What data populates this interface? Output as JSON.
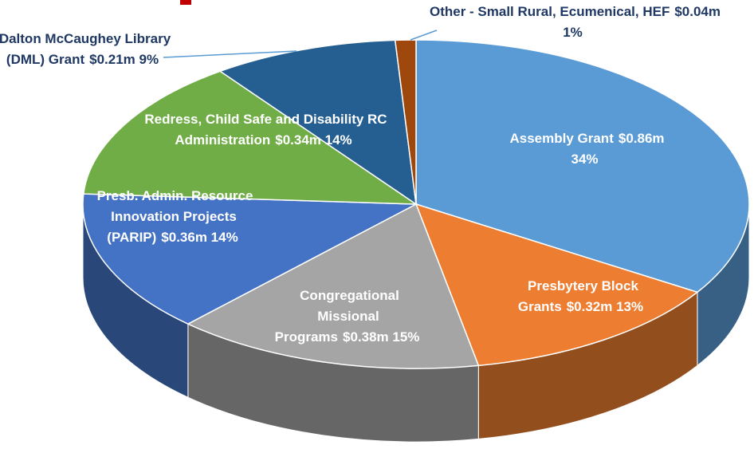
{
  "chart_data": {
    "type": "pie",
    "categories": [
      "Assembly Grant",
      "Presbytery Block Grants",
      "Congregational Missional Programs",
      "Presb. Admin. Resource Innovation Projects (PARIP)",
      "Redress, Child Safe and Disability RC Administration",
      "Dalton McCaughey Library (DML) Grant",
      "Other - Small Rural, Ecumenical, HEF"
    ],
    "values": [
      34,
      13,
      15,
      14,
      14,
      9,
      1
    ],
    "value_labels": [
      "$0.86m 34%",
      "$0.32m 13%",
      "$0.38m 15%",
      "$0.36m 14%",
      "$0.34m 14%",
      "$0.21m 9%",
      "$0.04m 1%"
    ],
    "colors": [
      "#5b9bd5",
      "#ed7d31",
      "#a5a5a5",
      "#4472c4",
      "#70ad47",
      "#255e91",
      "#9e480e"
    ]
  }
}
